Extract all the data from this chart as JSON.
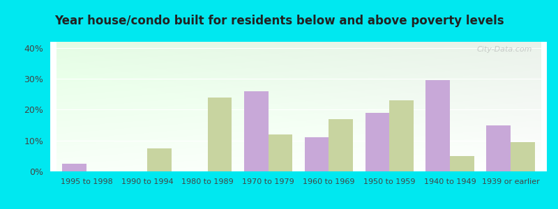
{
  "title": "Year house/condo built for residents below and above poverty levels",
  "categories": [
    "1995 to 1998",
    "1990 to 1994",
    "1980 to 1989",
    "1970 to 1979",
    "1960 to 1969",
    "1950 to 1959",
    "1940 to 1949",
    "1939 or earlier"
  ],
  "below_poverty": [
    2.5,
    0,
    0,
    26,
    11,
    19,
    29.5,
    15
  ],
  "above_poverty": [
    0,
    7.5,
    24,
    12,
    17,
    23,
    5,
    9.5
  ],
  "below_color": "#c8a8d8",
  "above_color": "#c8d4a0",
  "ylim": [
    0,
    42
  ],
  "yticks": [
    0,
    10,
    20,
    30,
    40
  ],
  "ytick_labels": [
    "0%",
    "10%",
    "20%",
    "30%",
    "40%"
  ],
  "outer_bg": "#00e8f0",
  "title_fontsize": 12,
  "bar_width": 0.4,
  "watermark": "City-Data.com"
}
